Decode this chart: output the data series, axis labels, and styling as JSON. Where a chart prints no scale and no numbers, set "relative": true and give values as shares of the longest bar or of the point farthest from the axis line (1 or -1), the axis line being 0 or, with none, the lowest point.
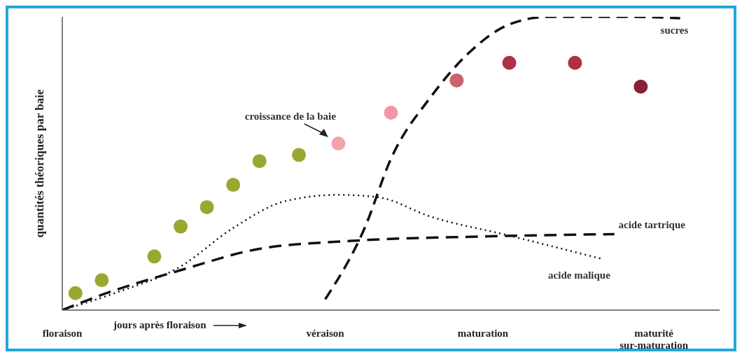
{
  "chart_data": {
    "type": "line",
    "relative": true,
    "ylabel": "quantités théoriques par baie",
    "xlabel": "jours après floraison",
    "categories": [
      "floraison",
      null,
      null,
      null,
      null,
      null,
      null,
      null,
      null,
      null,
      null,
      null,
      null,
      null,
      null,
      null,
      null,
      null,
      null,
      null,
      "véraison",
      null,
      null,
      null,
      null,
      null,
      null,
      null,
      null,
      null,
      null,
      null,
      "maturation",
      null,
      null,
      null,
      null,
      null,
      null,
      null,
      null,
      null,
      null,
      null,
      null,
      "maturité\nsur-maturation",
      null,
      null,
      null,
      null,
      null
    ],
    "tick_labels": "x",
    "grid": false,
    "legend": false,
    "series": [
      {
        "name": "croissance de la baie",
        "type": "scatter",
        "marker": "circle",
        "values": [
          null,
          0.058,
          null,
          0.102,
          null,
          null,
          null,
          0.183,
          null,
          0.285,
          null,
          0.351,
          null,
          0.427,
          null,
          0.508,
          null,
          null,
          0.529,
          null,
          null,
          0.568,
          null,
          null,
          null,
          0.673,
          null,
          null,
          null,
          null,
          0.783,
          null,
          null,
          null,
          0.843,
          null,
          null,
          null,
          null,
          0.843,
          null,
          null,
          null,
          null,
          0.762,
          null,
          null,
          null,
          null,
          null,
          null
        ],
        "colors": [
          null,
          "#9aa832",
          null,
          "#9aa832",
          null,
          null,
          null,
          "#9aa832",
          null,
          "#9aa832",
          null,
          "#9aa832",
          null,
          "#9aa832",
          null,
          "#9aa832",
          null,
          null,
          "#9aa832",
          null,
          null,
          "#f0a4ac",
          null,
          null,
          null,
          "#f097a3",
          null,
          null,
          null,
          null,
          "#c9636b",
          null,
          null,
          null,
          "#b03048",
          null,
          null,
          null,
          null,
          "#b03048",
          null,
          null,
          null,
          null,
          "#8a2035",
          null,
          null,
          null,
          null,
          null,
          null
        ]
      },
      {
        "name": "sucres",
        "color": "#111111",
        "line_style": "dashed",
        "values": [
          null,
          null,
          null,
          null,
          null,
          null,
          null,
          null,
          null,
          null,
          null,
          null,
          null,
          null,
          null,
          null,
          null,
          null,
          null,
          null,
          0.037,
          null,
          null,
          0.28,
          null,
          0.516,
          null,
          null,
          0.725,
          null,
          null,
          0.88,
          null,
          null,
          0.974,
          null,
          null,
          1.0,
          null,
          null,
          null,
          null,
          null,
          1.0,
          null,
          null,
          null,
          0.995,
          null,
          null,
          null
        ]
      },
      {
        "name": "acide tartrique",
        "color": "#111111",
        "line_style": "dashed",
        "values": [
          0,
          null,
          null,
          0.052,
          null,
          null,
          null,
          null,
          null,
          0.136,
          null,
          null,
          null,
          null,
          null,
          0.209,
          null,
          null,
          null,
          null,
          null,
          null,
          0.236,
          null,
          null,
          null,
          null,
          null,
          null,
          null,
          null,
          null,
          0.251,
          null,
          null,
          null,
          null,
          null,
          null,
          null,
          null,
          null,
          0.259,
          null,
          null,
          null,
          null,
          null,
          null,
          null,
          null
        ]
      },
      {
        "name": "acide malique",
        "color": "#111111",
        "line_style": "dotted",
        "values": [
          0,
          null,
          null,
          null,
          0.058,
          null,
          null,
          null,
          null,
          0.149,
          null,
          null,
          null,
          0.28,
          null,
          null,
          null,
          0.372,
          null,
          null,
          null,
          0.393,
          null,
          null,
          0.385,
          null,
          null,
          null,
          0.319,
          null,
          null,
          null,
          null,
          null,
          0.254,
          null,
          null,
          null,
          null,
          null,
          null,
          0.175,
          null,
          null,
          null,
          null,
          null,
          null,
          null,
          null,
          null
        ]
      }
    ]
  }
}
